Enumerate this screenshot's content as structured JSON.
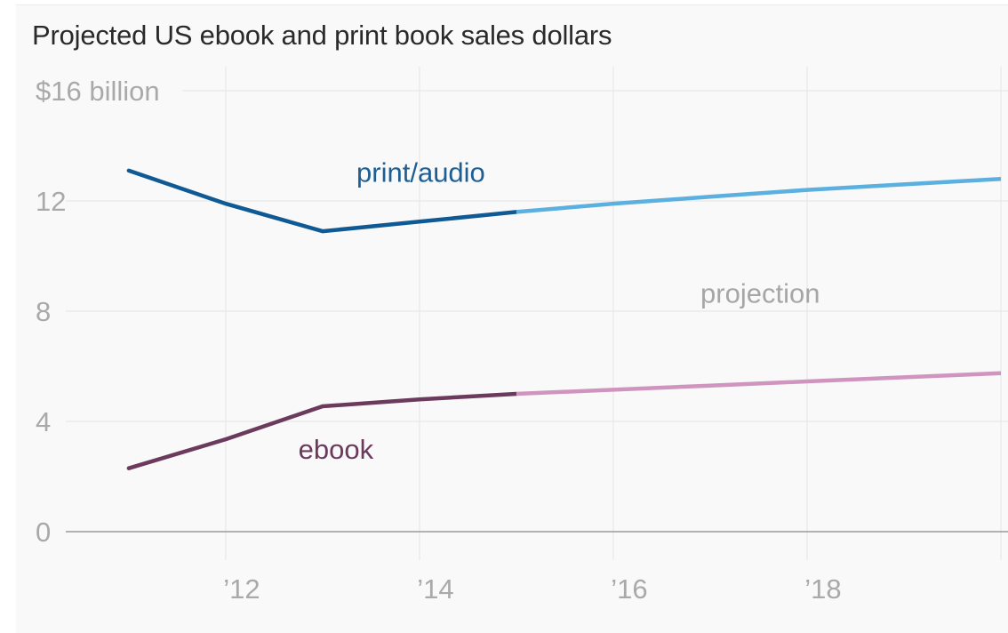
{
  "chart_data": {
    "type": "line",
    "title": "Projected US ebook and print book sales dollars",
    "xlabel": "",
    "ylabel": "",
    "x": [
      2011,
      2012,
      2013,
      2014,
      2015,
      2016,
      2017,
      2018,
      2019,
      2020
    ],
    "xlim": [
      2010.35,
      2020
    ],
    "ylim": [
      0,
      16
    ],
    "x_ticks": [
      2012,
      2014,
      2016,
      2018,
      2020
    ],
    "x_tick_labels": [
      "’12",
      "’14",
      "’16",
      "’18",
      "’"
    ],
    "y_ticks": [
      0,
      4,
      8,
      12,
      16
    ],
    "y_tick_labels": [
      "0",
      "4",
      "8",
      "12",
      "$16 billion"
    ],
    "grid": true,
    "legend": "none",
    "series": [
      {
        "key": "print",
        "name": "print/audio",
        "actual_x": [
          2011,
          2012,
          2013,
          2014,
          2015
        ],
        "actual_values": [
          13.1,
          11.9,
          10.9,
          11.25,
          11.6
        ],
        "projection_x": [
          2015,
          2016,
          2017,
          2018,
          2019,
          2020
        ],
        "projection_values": [
          11.6,
          11.9,
          12.15,
          12.4,
          12.6,
          12.8
        ],
        "color": "#0f5a94",
        "projection_color": "#5bb0df"
      },
      {
        "key": "ebook",
        "name": "ebook",
        "actual_x": [
          2011,
          2012,
          2013,
          2014,
          2015
        ],
        "actual_values": [
          2.3,
          3.35,
          4.55,
          4.8,
          5.0
        ],
        "projection_x": [
          2015,
          2016,
          2017,
          2018,
          2019,
          2020
        ],
        "projection_values": [
          5.0,
          5.15,
          5.3,
          5.45,
          5.6,
          5.75
        ],
        "color": "#6b3a5c",
        "projection_color": "#d095bf"
      }
    ],
    "annotations": [
      {
        "text": "print/audio",
        "x": 2013.35,
        "y": 12.7,
        "color": "#1d5e94"
      },
      {
        "text": "ebook",
        "x": 2012.75,
        "y": 2.65,
        "color": "#6b3a5c"
      },
      {
        "text": "projection",
        "x": 2016.9,
        "y": 8.3,
        "color": "#a6a6a6"
      }
    ],
    "colors": {
      "grid": "#e8e8e8",
      "baseline": "#9a9a9a",
      "tick_label": "#a9a9a9",
      "title": "#2a2a2a"
    }
  }
}
